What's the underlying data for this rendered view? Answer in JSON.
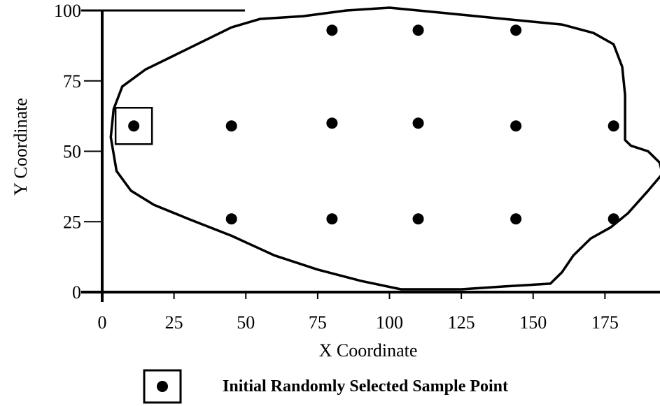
{
  "chart_data": {
    "type": "scatter",
    "xlabel": "X Coordinate",
    "ylabel": "Y Coordinate",
    "xlim": [
      0,
      195
    ],
    "ylim": [
      0,
      100
    ],
    "xticks": [
      "0",
      "25",
      "50",
      "75",
      "100",
      "125",
      "150",
      "175"
    ],
    "yticks": [
      "0",
      "25",
      "50",
      "75",
      "100"
    ],
    "grid": false,
    "series": [
      {
        "values": [
          {
            "x": 80,
            "y": 93
          },
          {
            "x": 110,
            "y": 93
          },
          {
            "x": 144,
            "y": 93
          },
          {
            "x": 45,
            "y": 59
          },
          {
            "x": 80,
            "y": 60
          },
          {
            "x": 110,
            "y": 60
          },
          {
            "x": 144,
            "y": 59
          },
          {
            "x": 178,
            "y": 59
          },
          {
            "x": 45,
            "y": 26
          },
          {
            "x": 80,
            "y": 26
          },
          {
            "x": 110,
            "y": 26
          },
          {
            "x": 144,
            "y": 26
          },
          {
            "x": 178,
            "y": 26
          }
        ]
      },
      {
        "name": "Initial Randomly Selected Sample Point",
        "values": [
          {
            "x": 11,
            "y": 59
          }
        ]
      }
    ],
    "boundary_outline": [
      [
        104,
        1
      ],
      [
        125,
        1
      ],
      [
        140,
        2
      ],
      [
        156,
        3
      ],
      [
        160,
        7
      ],
      [
        164,
        13
      ],
      [
        170,
        19
      ],
      [
        177,
        23
      ],
      [
        183,
        28
      ],
      [
        190,
        36
      ],
      [
        195,
        42
      ],
      [
        194,
        46
      ],
      [
        190,
        50
      ],
      [
        184,
        52
      ],
      [
        182,
        54
      ],
      [
        182,
        70
      ],
      [
        181,
        80
      ],
      [
        178,
        88
      ],
      [
        171,
        92
      ],
      [
        160,
        95
      ],
      [
        140,
        97
      ],
      [
        120,
        99
      ],
      [
        100,
        101
      ],
      [
        85,
        100
      ],
      [
        70,
        98
      ],
      [
        55,
        97
      ],
      [
        45,
        94
      ],
      [
        35,
        89
      ],
      [
        25,
        84
      ],
      [
        15,
        79
      ],
      [
        7,
        73
      ],
      [
        4,
        65
      ],
      [
        3,
        55
      ],
      [
        5,
        43
      ],
      [
        10,
        36
      ],
      [
        18,
        31
      ],
      [
        30,
        26
      ],
      [
        45,
        20
      ],
      [
        60,
        13
      ],
      [
        75,
        8
      ],
      [
        90,
        4
      ],
      [
        104,
        1
      ]
    ],
    "legend": {
      "label": "Initial Randomly Selected Sample Point",
      "placement": "bottom"
    }
  }
}
